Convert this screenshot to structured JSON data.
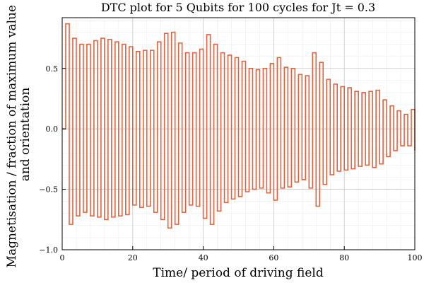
{
  "chart_data": {
    "type": "line",
    "title": "DTC plot for 5 Qubits for 100 cycles for Jt = 0.3",
    "xlabel": "Time/ period of driving field",
    "ylabel_lines": [
      "Magnetisation / fraction of maximum value",
      "and orientation"
    ],
    "xlim": [
      0,
      100
    ],
    "ylim": [
      -1.0,
      0.92
    ],
    "xticks": [
      0,
      20,
      40,
      60,
      80,
      100
    ],
    "xtick_labels": [
      "0",
      "20",
      "40",
      "60",
      "80",
      "100"
    ],
    "yticks": [
      -1.0,
      -0.5,
      0.0,
      0.5
    ],
    "ytick_labels": [
      "−1.0",
      "−0.5",
      "0.0",
      "0.5"
    ],
    "grid": true,
    "legend": "none",
    "line_color": "#e0633f",
    "series": [
      {
        "values": [
          0.0,
          0.87,
          -0.79,
          0.75,
          -0.72,
          0.7,
          -0.69,
          0.7,
          -0.72,
          0.73,
          -0.73,
          0.75,
          -0.75,
          0.74,
          -0.73,
          0.72,
          -0.72,
          0.7,
          -0.71,
          0.68,
          -0.63,
          0.64,
          -0.65,
          0.65,
          -0.64,
          0.65,
          -0.69,
          0.72,
          -0.75,
          0.79,
          -0.82,
          0.8,
          -0.79,
          0.71,
          -0.69,
          0.63,
          -0.63,
          0.63,
          -0.64,
          0.66,
          -0.74,
          0.78,
          -0.79,
          0.7,
          -0.68,
          0.63,
          -0.61,
          0.61,
          -0.58,
          0.59,
          -0.56,
          0.56,
          -0.52,
          0.5,
          -0.5,
          0.49,
          -0.49,
          0.5,
          -0.53,
          0.54,
          -0.59,
          0.59,
          -0.49,
          0.51,
          -0.48,
          0.5,
          -0.44,
          0.45,
          -0.42,
          0.44,
          -0.49,
          0.63,
          -0.64,
          0.55,
          -0.46,
          0.41,
          -0.38,
          0.37,
          -0.35,
          0.35,
          -0.34,
          0.34,
          -0.33,
          0.31,
          -0.31,
          0.3,
          -0.3,
          0.31,
          -0.32,
          0.32,
          -0.29,
          0.24,
          -0.23,
          0.19,
          -0.18,
          0.15,
          -0.14,
          0.12,
          -0.14,
          0.16,
          -0.18
        ]
      }
    ]
  }
}
